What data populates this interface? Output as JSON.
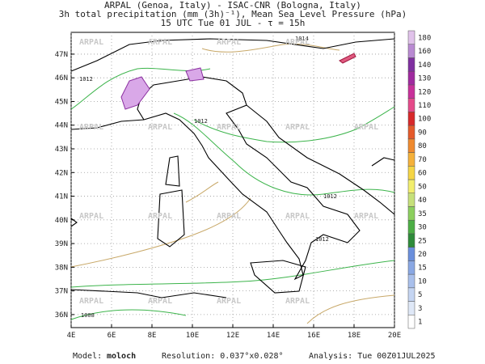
{
  "header": {
    "line1": "ARPAL (Genoa, Italy)  -  ISAC-CNR (Bologna, Italy)",
    "line2": "3h total precipitation (mm (3h)⁻¹), Mean Sea Level Pressure (hPa)",
    "line3": "15 UTC Tue 01 JUL  -  τ = 15h"
  },
  "map": {
    "lat_ticks": [
      {
        "value": 36,
        "label": "36N"
      },
      {
        "value": 37,
        "label": "37N"
      },
      {
        "value": 38,
        "label": "38N"
      },
      {
        "value": 39,
        "label": "39N"
      },
      {
        "value": 40,
        "label": "40N"
      },
      {
        "value": 41,
        "label": "41N"
      },
      {
        "value": 42,
        "label": "42N"
      },
      {
        "value": 43,
        "label": "43N"
      },
      {
        "value": 44,
        "label": "44N"
      },
      {
        "value": 45,
        "label": "45N"
      },
      {
        "value": 46,
        "label": "46N"
      },
      {
        "value": 47,
        "label": "47N"
      }
    ],
    "lon_ticks": [
      {
        "value": 4,
        "label": "4E"
      },
      {
        "value": 6,
        "label": "6E"
      },
      {
        "value": 8,
        "label": "8E"
      },
      {
        "value": 10,
        "label": "10E"
      },
      {
        "value": 12,
        "label": "12E"
      },
      {
        "value": 14,
        "label": "14E"
      },
      {
        "value": 16,
        "label": "16E"
      },
      {
        "value": 18,
        "label": "18E"
      },
      {
        "value": 20,
        "label": "20E"
      }
    ],
    "watermark": "ARPAL",
    "isobar_labels": [
      "1012",
      "1012",
      "1014",
      "1012",
      "1012",
      "1008"
    ]
  },
  "colorbar": {
    "levels": [
      1,
      3,
      5,
      10,
      15,
      20,
      25,
      30,
      35,
      40,
      50,
      60,
      70,
      80,
      90,
      100,
      110,
      120,
      130,
      140,
      160,
      180
    ],
    "colors": [
      "#ffffff",
      "#dfe8f7",
      "#c5d5f2",
      "#a9c0ec",
      "#8aa8e4",
      "#6a8fdc",
      "#2e8b3a",
      "#4cae45",
      "#8ccf5e",
      "#c6e07a",
      "#f2ee6e",
      "#f5d545",
      "#f5b13a",
      "#ef8a2f",
      "#e55a2a",
      "#d8282a",
      "#e54a8a",
      "#c8309a",
      "#a02aa0",
      "#7f2fa0",
      "#b98ad2",
      "#e0c2ea"
    ]
  },
  "footer": {
    "model_label": "Model:",
    "model": "moloch",
    "resolution": "Resolution: 0.037°x0.028°",
    "analysis": "Analysis: Tue 00Z01JUL2025"
  }
}
